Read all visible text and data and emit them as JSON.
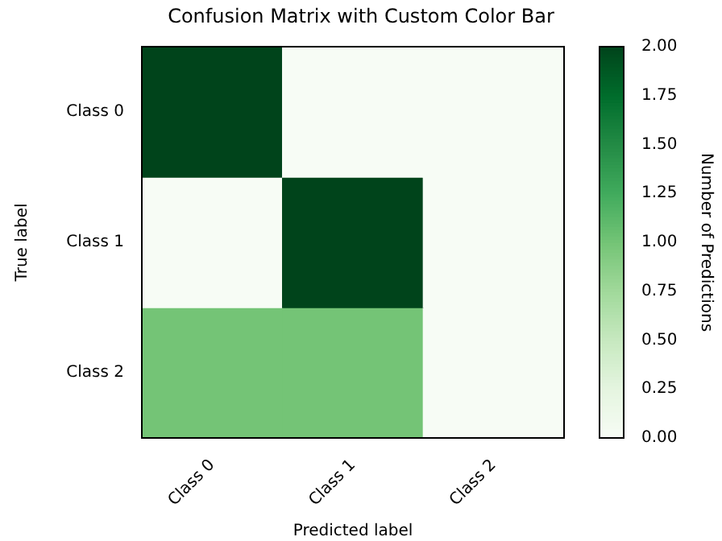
{
  "chart_data": {
    "type": "heatmap",
    "title": "Confusion Matrix with Custom Color Bar",
    "xlabel": "Predicted label",
    "ylabel": "True label",
    "clabel": "Number of Predictions",
    "categories": [
      "Class 0",
      "Class 1",
      "Class 2"
    ],
    "y_categories": [
      "Class 0",
      "Class 1",
      "Class 2"
    ],
    "cells": [
      [
        2,
        0,
        0
      ],
      [
        0,
        2,
        0
      ],
      [
        1,
        1,
        0
      ]
    ],
    "clim": [
      0,
      2
    ],
    "cticks": [
      {
        "value": 0,
        "label": "0.00"
      },
      {
        "value": 0.25,
        "label": "0.25"
      },
      {
        "value": 0.5,
        "label": "0.50"
      },
      {
        "value": 0.75,
        "label": "0.75"
      },
      {
        "value": 1,
        "label": "1.00"
      },
      {
        "value": 1.25,
        "label": "1.25"
      },
      {
        "value": 1.5,
        "label": "1.50"
      },
      {
        "value": 1.75,
        "label": "1.75"
      },
      {
        "value": 2,
        "label": "2.00"
      }
    ]
  }
}
